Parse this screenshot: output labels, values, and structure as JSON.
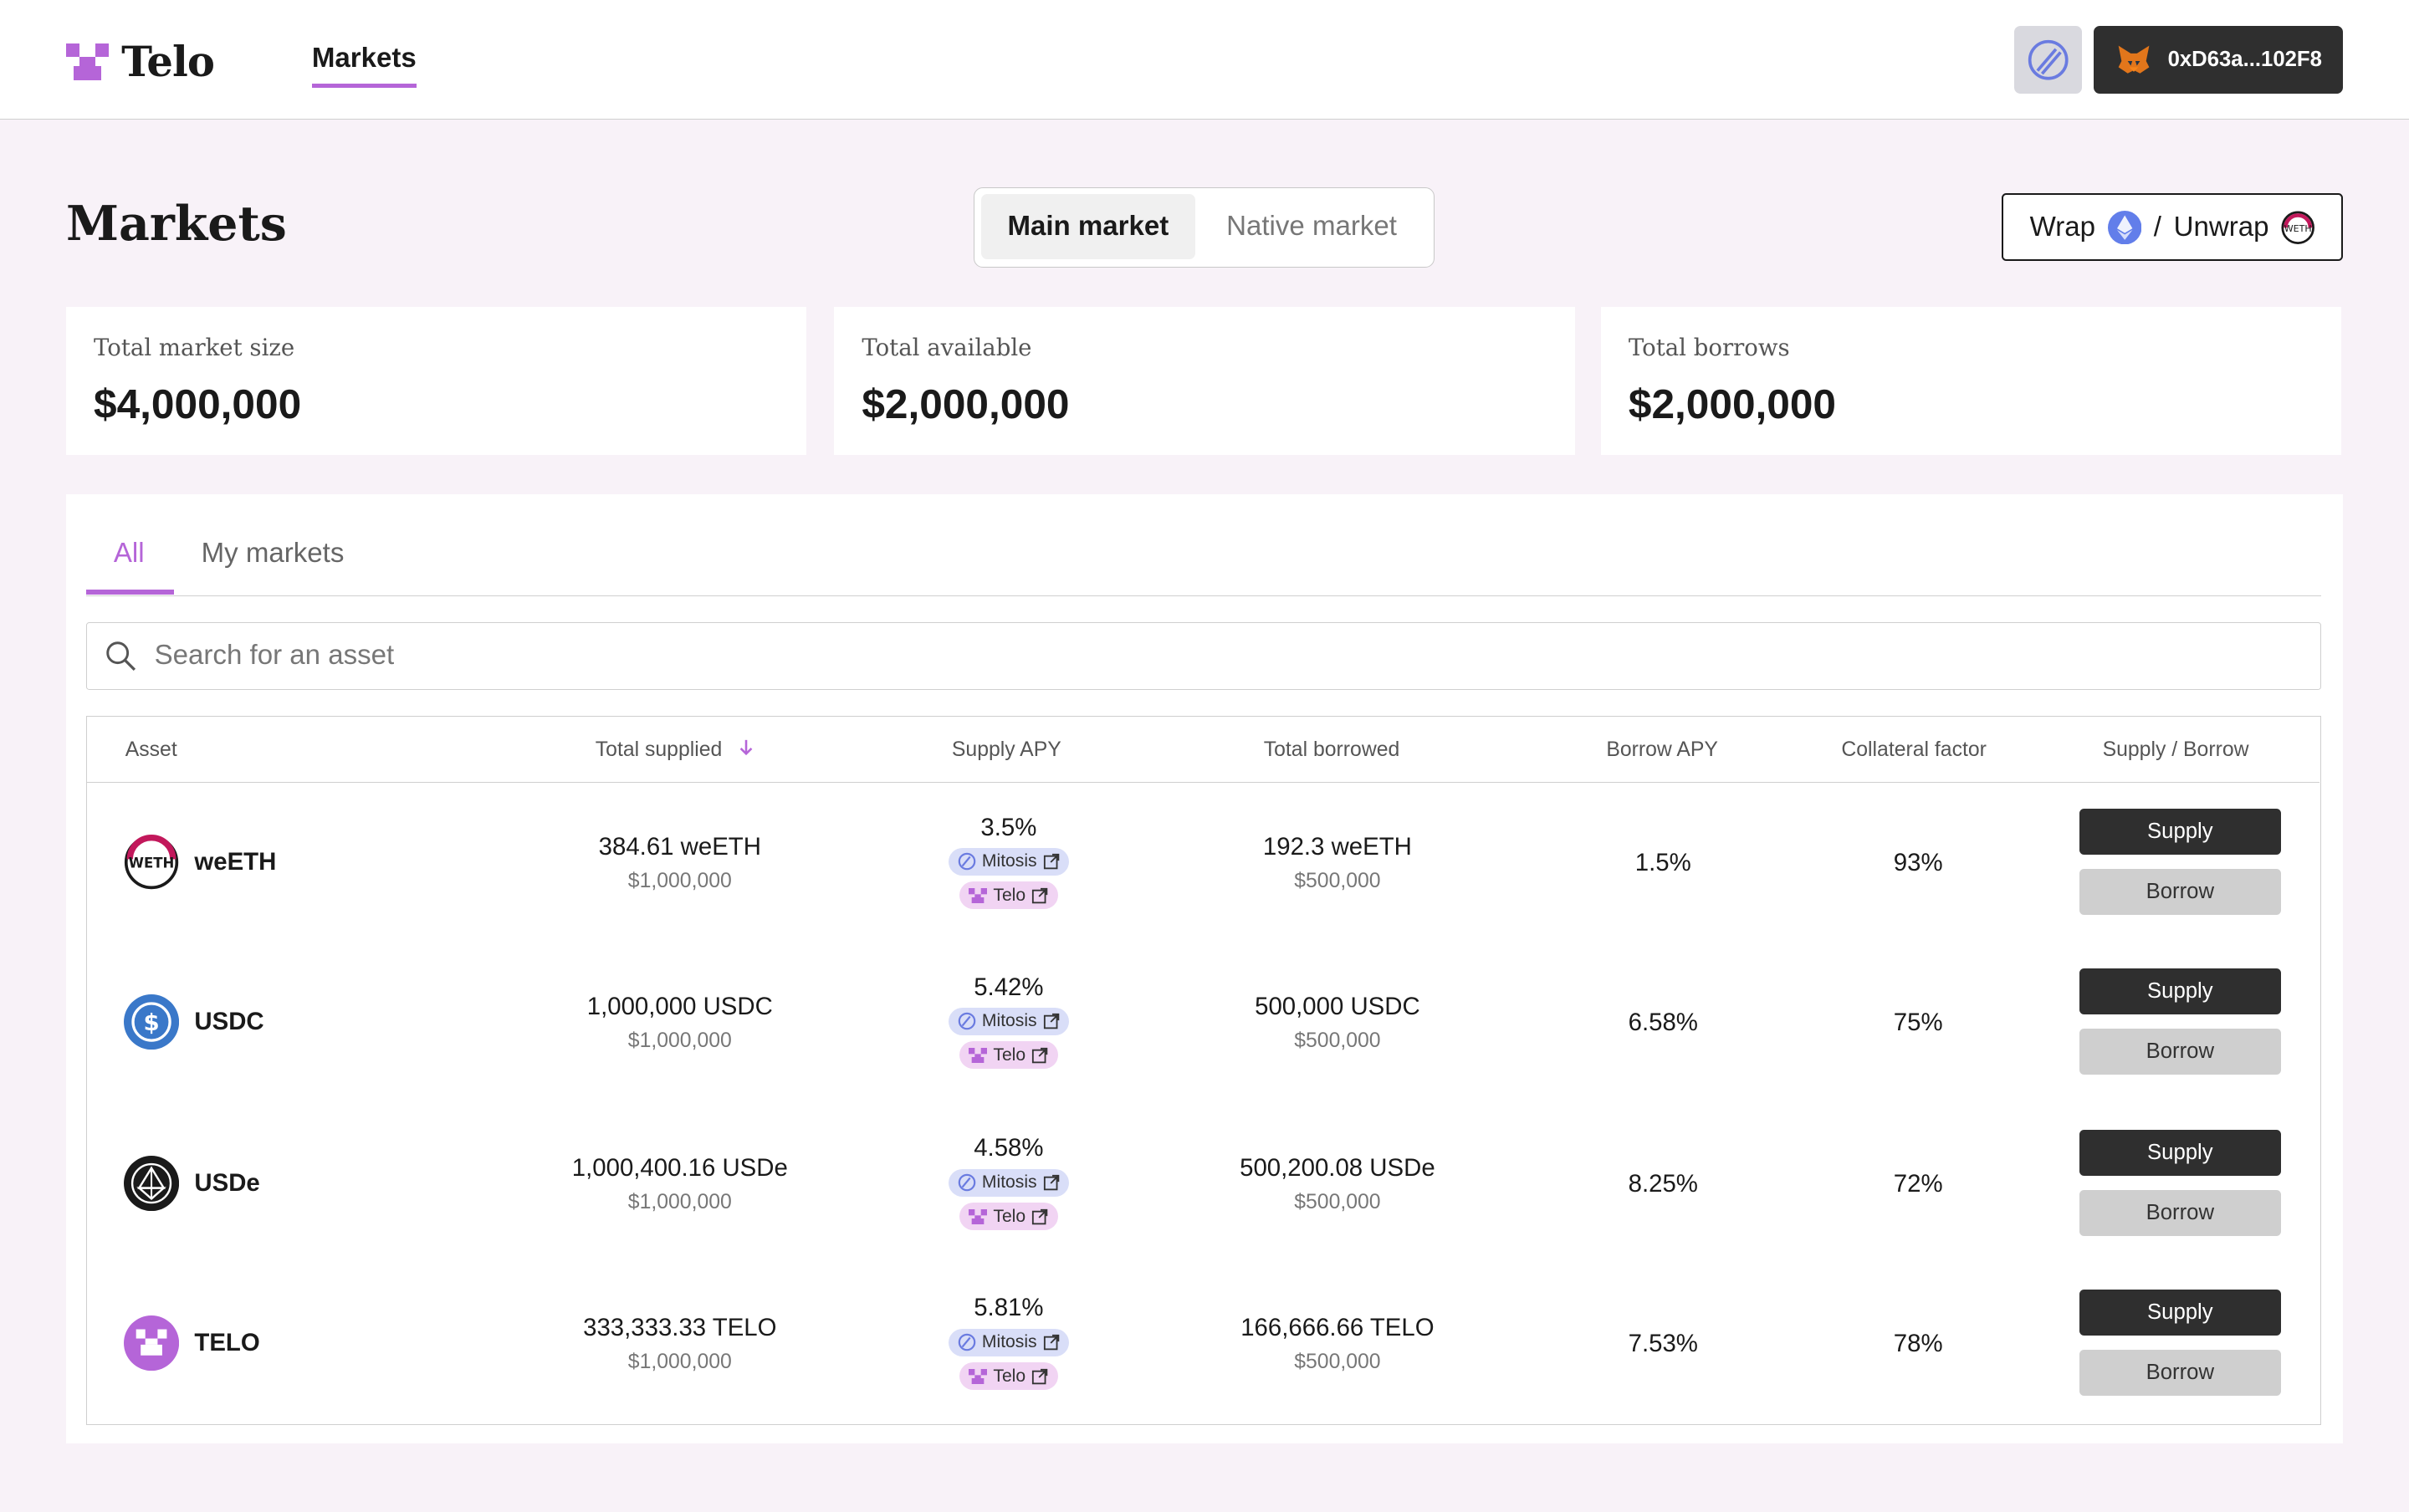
{
  "header": {
    "logo_text": "Telo",
    "nav_markets": "Markets",
    "wallet_address": "0xD63a...102F8"
  },
  "page": {
    "title": "Markets",
    "toggle": {
      "main": "Main market",
      "native": "Native market"
    },
    "wrap": {
      "wrap_label": "Wrap",
      "slash": "/",
      "unwrap_label": "Unwrap"
    }
  },
  "stats": [
    {
      "label": "Total market size",
      "value": "$4,000,000"
    },
    {
      "label": "Total available",
      "value": "$2,000,000"
    },
    {
      "label": "Total borrows",
      "value": "$2,000,000"
    }
  ],
  "tabs": {
    "all": "All",
    "mine": "My markets"
  },
  "search": {
    "placeholder": "Search for an asset"
  },
  "table": {
    "headers": {
      "asset": "Asset",
      "total_supplied": "Total supplied",
      "supply_apy": "Supply APY",
      "total_borrowed": "Total borrowed",
      "borrow_apy": "Borrow APY",
      "collateral": "Collateral factor",
      "action": "Supply / Borrow"
    },
    "chip_labels": {
      "mitosis": "Mitosis",
      "telo": "Telo"
    },
    "buttons": {
      "supply": "Supply",
      "borrow": "Borrow"
    },
    "rows": [
      {
        "asset": "weETH",
        "supplied": "384.61 weETH",
        "supplied_usd": "$1,000,000",
        "supply_apy": "3.5%",
        "borrowed": "192.3 weETH",
        "borrowed_usd": "$500,000",
        "borrow_apy": "1.5%",
        "collateral": "93%"
      },
      {
        "asset": "USDC",
        "supplied": "1,000,000 USDC",
        "supplied_usd": "$1,000,000",
        "supply_apy": "5.42%",
        "borrowed": "500,000 USDC",
        "borrowed_usd": "$500,000",
        "borrow_apy": "6.58%",
        "collateral": "75%"
      },
      {
        "asset": "USDe",
        "supplied": "1,000,400.16 USDe",
        "supplied_usd": "$1,000,000",
        "supply_apy": "4.58%",
        "borrowed": "500,200.08 USDe",
        "borrowed_usd": "$500,000",
        "borrow_apy": "8.25%",
        "collateral": "72%"
      },
      {
        "asset": "TELO",
        "supplied": "333,333.33 TELO",
        "supplied_usd": "$1,000,000",
        "supply_apy": "5.81%",
        "borrowed": "166,666.66 TELO",
        "borrowed_usd": "$500,000",
        "borrow_apy": "7.53%",
        "collateral": "78%"
      }
    ]
  },
  "colors": {
    "accent": "#b565d8",
    "background": "#f8f2f8",
    "dark_button": "#2f2f2f",
    "usdc_blue": "#3a78c9"
  },
  "icons": {
    "weeth": "weeth-token-icon",
    "usdc": "usdc-token-icon",
    "usde": "usde-token-icon",
    "telo": "telo-token-icon",
    "network": "mitosis-network-icon",
    "wallet": "metamask-fox-icon"
  }
}
